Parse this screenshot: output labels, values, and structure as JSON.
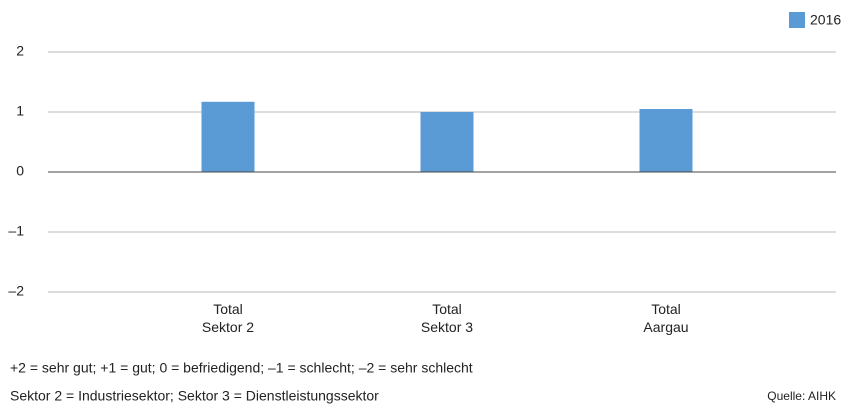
{
  "chart_data": {
    "type": "bar",
    "categories": [
      "Total\nSektor 2",
      "Total\nSektor 3",
      "Total\nAargau"
    ],
    "series": [
      {
        "name": "2016",
        "color": "#5b9bd5",
        "values": [
          1.17,
          1.0,
          1.05
        ]
      }
    ],
    "ylim": [
      -2,
      2
    ],
    "yticks": [
      {
        "value": -2,
        "label": "–2"
      },
      {
        "value": -1,
        "label": "–1"
      },
      0,
      1,
      2
    ],
    "grid": true,
    "legend": "top-right",
    "notes": [
      "+2 = sehr gut; +1 = gut; 0 = befriedigend; –1 = schlecht; –2 = sehr schlecht",
      "Sektor 2 = Industriesektor; Sektor 3 = Dienstleistungssektor"
    ],
    "source": "Quelle: AIHK"
  }
}
